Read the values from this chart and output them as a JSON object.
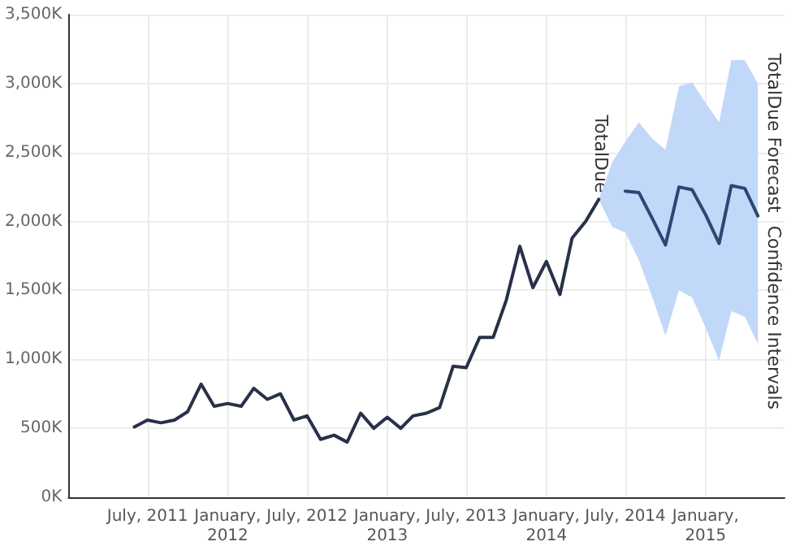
{
  "chart_data": {
    "type": "line",
    "xlim": [
      "2011-01",
      "2015-07"
    ],
    "xticks": [
      {
        "value": "2011-07",
        "label": "July, 2011"
      },
      {
        "value": "2012-01",
        "label": "January, 2012"
      },
      {
        "value": "2012-07",
        "label": "July, 2012"
      },
      {
        "value": "2013-01",
        "label": "January, 2013"
      },
      {
        "value": "2013-07",
        "label": "July, 2013"
      },
      {
        "value": "2014-01",
        "label": "January, 2014"
      },
      {
        "value": "2014-07",
        "label": "July, 2014"
      },
      {
        "value": "2015-01",
        "label": "January, 2015"
      }
    ],
    "ylim": [
      0,
      3500
    ],
    "yticks": [
      {
        "value": 0,
        "label": "0K"
      },
      {
        "value": 500,
        "label": "500K"
      },
      {
        "value": 1000,
        "label": "1,000K"
      },
      {
        "value": 1500,
        "label": "1,500K"
      },
      {
        "value": 2000,
        "label": "2,000K"
      },
      {
        "value": 2500,
        "label": "2,500K"
      },
      {
        "value": 3000,
        "label": "3,000K"
      },
      {
        "value": 3500,
        "label": "3,500K"
      }
    ],
    "grid": true,
    "marker": "none",
    "line_style": "solid",
    "annotations": [
      "Confidence Intervals"
    ],
    "series": [
      {
        "name": "TotalDue",
        "color": "#283148",
        "x": [
          "2011-06",
          "2011-07",
          "2011-08",
          "2011-09",
          "2011-10",
          "2011-11",
          "2011-12",
          "2012-01",
          "2012-02",
          "2012-03",
          "2012-04",
          "2012-05",
          "2012-06",
          "2012-07",
          "2012-08",
          "2012-09",
          "2012-10",
          "2012-11",
          "2012-12",
          "2013-01",
          "2013-02",
          "2013-03",
          "2013-04",
          "2013-05",
          "2013-06",
          "2013-07",
          "2013-08",
          "2013-09",
          "2013-10",
          "2013-11",
          "2013-12",
          "2014-01",
          "2014-02",
          "2014-03",
          "2014-04",
          "2014-05"
        ],
        "values": [
          510,
          560,
          540,
          560,
          620,
          820,
          660,
          680,
          660,
          790,
          710,
          750,
          560,
          590,
          420,
          450,
          400,
          610,
          500,
          580,
          500,
          590,
          610,
          650,
          950,
          940,
          1160,
          1160,
          1430,
          1820,
          1520,
          1710,
          1470,
          1880,
          2000,
          2160
        ]
      },
      {
        "name": "TotalDue Forecast",
        "color": "#2b4774",
        "x": [
          "2014-05",
          "2014-06",
          "2014-07",
          "2014-08",
          "2014-09",
          "2014-10",
          "2014-11",
          "2014-12",
          "2015-01",
          "2015-02",
          "2015-03",
          "2015-04",
          "2015-05"
        ],
        "values": [
          null,
          null,
          2220,
          2210,
          2020,
          1830,
          2250,
          2230,
          2050,
          1840,
          2260,
          2240,
          2040
        ],
        "lower": [
          2160,
          1960,
          1920,
          1720,
          1450,
          1170,
          1500,
          1450,
          1230,
          990,
          1350,
          1310,
          1110
        ],
        "upper": [
          2160,
          2430,
          2580,
          2720,
          2600,
          2520,
          2980,
          3010,
          2860,
          2720,
          3170,
          3170,
          3000
        ]
      }
    ]
  }
}
